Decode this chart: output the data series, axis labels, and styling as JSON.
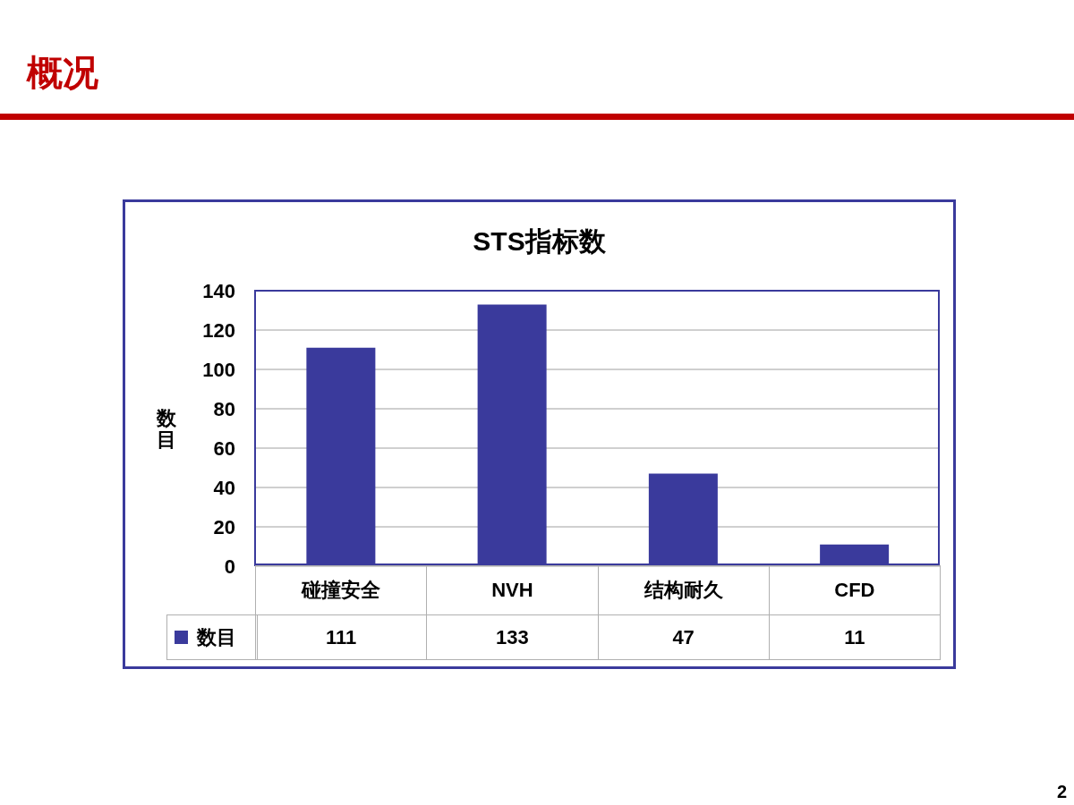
{
  "chart_data": {
    "type": "bar",
    "title": "STS指标数",
    "ylabel": "数目",
    "categories": [
      "碰撞安全",
      "NVH",
      "结构耐久",
      "CFD"
    ],
    "series": [
      {
        "name": "数目",
        "color": "#3a3a9c",
        "values": [
          111,
          133,
          47,
          11
        ]
      }
    ],
    "ylim": [
      0,
      140
    ],
    "yticks": [
      0,
      20,
      40,
      60,
      80,
      100,
      120,
      140
    ],
    "grid": "y",
    "legend": "bottom left",
    "data_labels": true,
    "annotations": [
      "概况",
      "2"
    ]
  }
}
